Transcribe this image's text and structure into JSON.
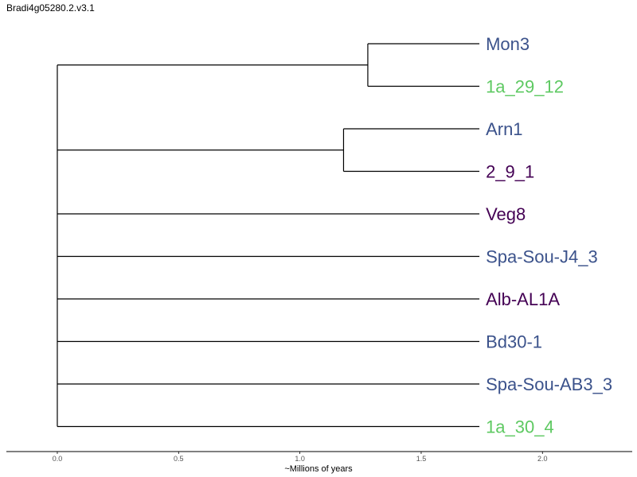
{
  "title": "Bradi4g05280.2.v3.1",
  "colors": {
    "blue": "#3b528b",
    "purple": "#440154",
    "green": "#5ec962",
    "branch": "#000000"
  },
  "chart_data": {
    "type": "dendrogram",
    "xlabel": "~Millions of years",
    "xlim": [
      -0.21,
      2.37
    ],
    "ticks": [
      "0.0",
      "0.5",
      "1.0",
      "1.5",
      "2.0"
    ],
    "tick_values": [
      0.0,
      0.5,
      1.0,
      1.5,
      2.0
    ],
    "leaf_depth": 1.74,
    "leaves": [
      {
        "name": "Mon3",
        "color": "blue"
      },
      {
        "name": "1a_29_12",
        "color": "green"
      },
      {
        "name": "Arn1",
        "color": "blue"
      },
      {
        "name": "2_9_1",
        "color": "purple"
      },
      {
        "name": "Veg8",
        "color": "purple"
      },
      {
        "name": "Spa-Sou-J4_3",
        "color": "blue"
      },
      {
        "name": "Alb-AL1A",
        "color": "purple"
      },
      {
        "name": "Bd30-1",
        "color": "blue"
      },
      {
        "name": "Spa-Sou-AB3_3",
        "color": "blue"
      },
      {
        "name": "1a_30_4",
        "color": "green"
      }
    ],
    "clades": [
      {
        "members": [
          0,
          1
        ],
        "node_x": 1.28
      },
      {
        "members": [
          2,
          3
        ],
        "node_x": 1.18
      }
    ],
    "root_x": 0.0
  }
}
